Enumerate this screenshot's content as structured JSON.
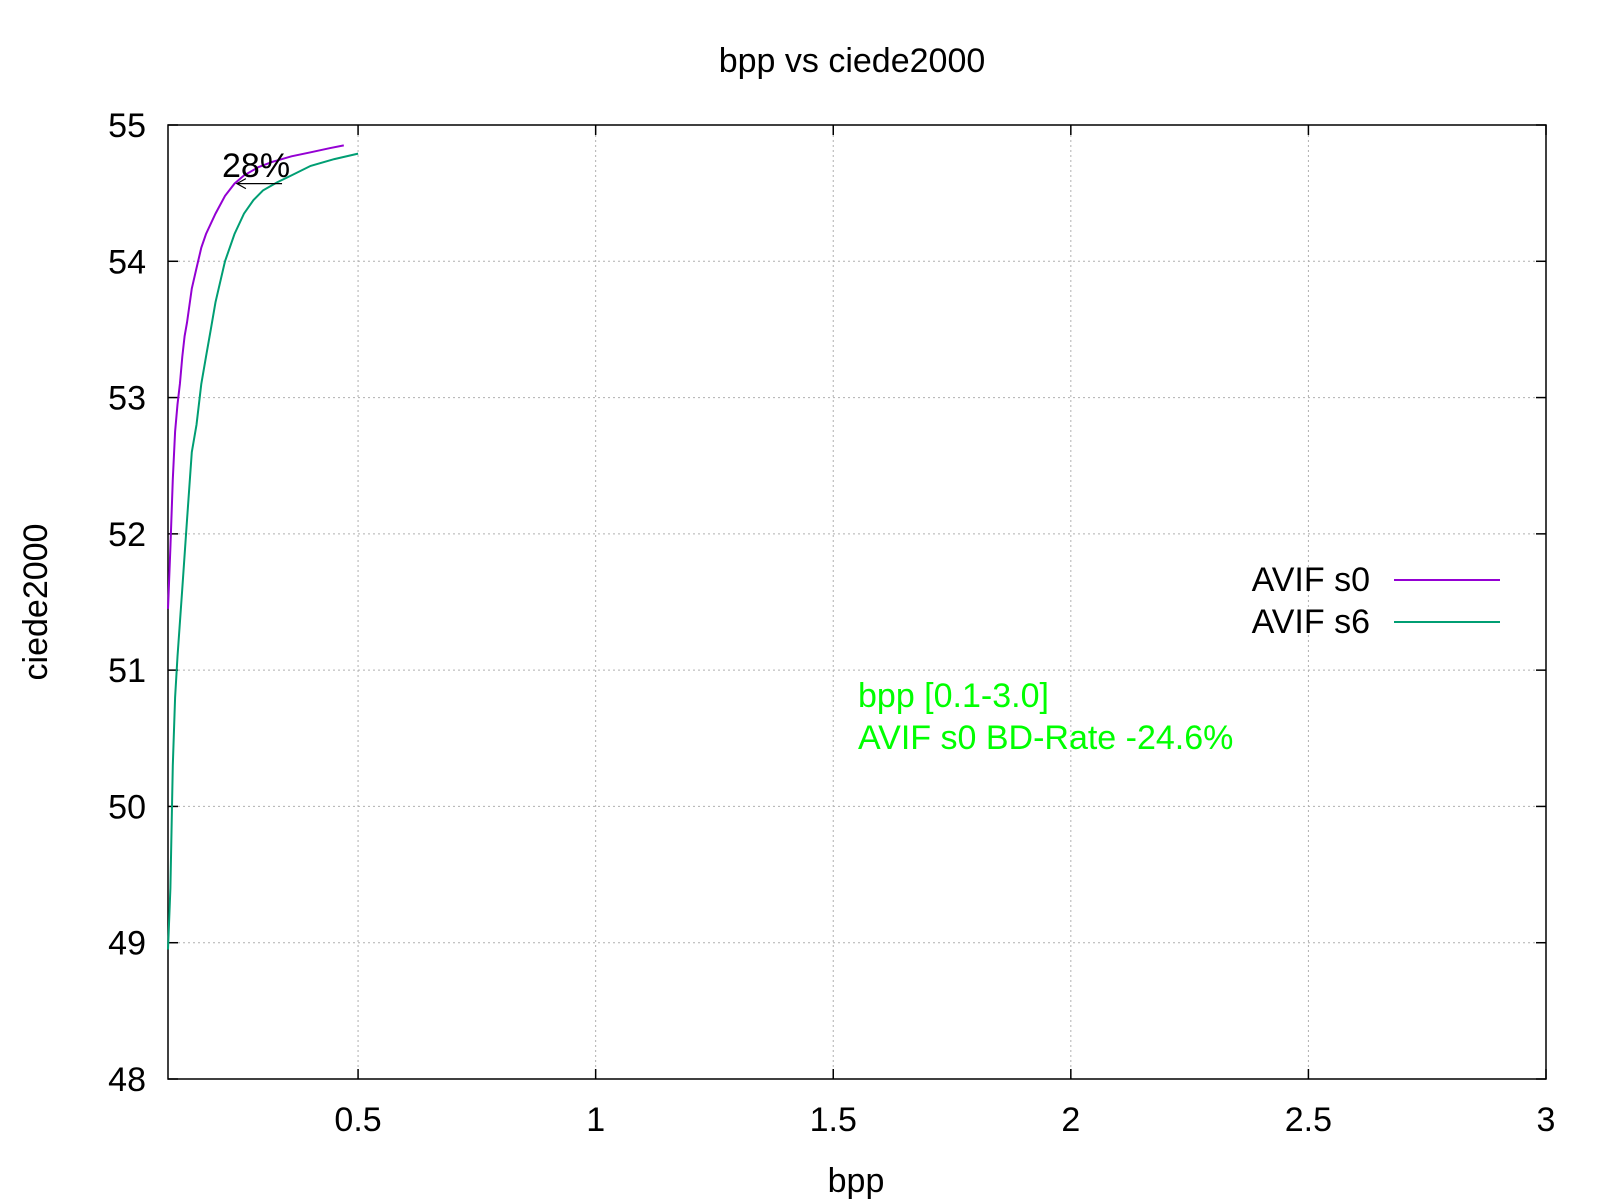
{
  "chart_data": {
    "type": "line",
    "title": "bpp vs ciede2000",
    "xlabel": "bpp",
    "ylabel": "ciede2000",
    "xlim": [
      0.1,
      3.0
    ],
    "ylim": [
      48,
      55
    ],
    "xticks": [
      0.5,
      1,
      1.5,
      2,
      2.5,
      3
    ],
    "xtick_labels": [
      "0.5",
      "1",
      "1.5",
      "2",
      "2.5",
      "3"
    ],
    "yticks": [
      48,
      49,
      50,
      51,
      52,
      53,
      54,
      55
    ],
    "ytick_labels": [
      "48",
      "49",
      "50",
      "51",
      "52",
      "53",
      "54",
      "55"
    ],
    "grid": true,
    "legend_position": "right",
    "series": [
      {
        "name": "AVIF s0",
        "color": "#9400d3",
        "x": [
          0.1,
          0.105,
          0.11,
          0.115,
          0.12,
          0.125,
          0.13,
          0.135,
          0.14,
          0.15,
          0.16,
          0.17,
          0.18,
          0.2,
          0.22,
          0.24,
          0.26,
          0.29,
          0.32,
          0.36,
          0.4,
          0.44,
          0.47
        ],
        "y": [
          51.45,
          51.9,
          52.4,
          52.75,
          52.95,
          53.1,
          53.3,
          53.45,
          53.55,
          53.8,
          53.95,
          54.1,
          54.2,
          54.35,
          54.48,
          54.57,
          54.63,
          54.69,
          54.73,
          54.77,
          54.8,
          54.83,
          54.85
        ]
      },
      {
        "name": "AVIF s6",
        "color": "#009e73",
        "x": [
          0.1,
          0.105,
          0.11,
          0.115,
          0.12,
          0.13,
          0.14,
          0.15,
          0.16,
          0.17,
          0.18,
          0.19,
          0.2,
          0.22,
          0.24,
          0.26,
          0.28,
          0.3,
          0.33,
          0.36,
          0.4,
          0.45,
          0.5
        ],
        "y": [
          48.95,
          49.4,
          50.3,
          50.8,
          51.1,
          51.6,
          52.1,
          52.6,
          52.8,
          53.1,
          53.3,
          53.5,
          53.7,
          54.0,
          54.2,
          54.35,
          54.45,
          54.52,
          54.58,
          54.63,
          54.7,
          54.75,
          54.79
        ]
      }
    ],
    "annotations": {
      "arrow_label": "28%",
      "range_text": "bpp [0.1-3.0]",
      "bdrate_text": "AVIF s0 BD-Rate -24.6%",
      "bdrate_color": "#00ff00",
      "arrow": {
        "x_from": 0.34,
        "x_to": 0.245,
        "y": 54.57
      }
    }
  }
}
